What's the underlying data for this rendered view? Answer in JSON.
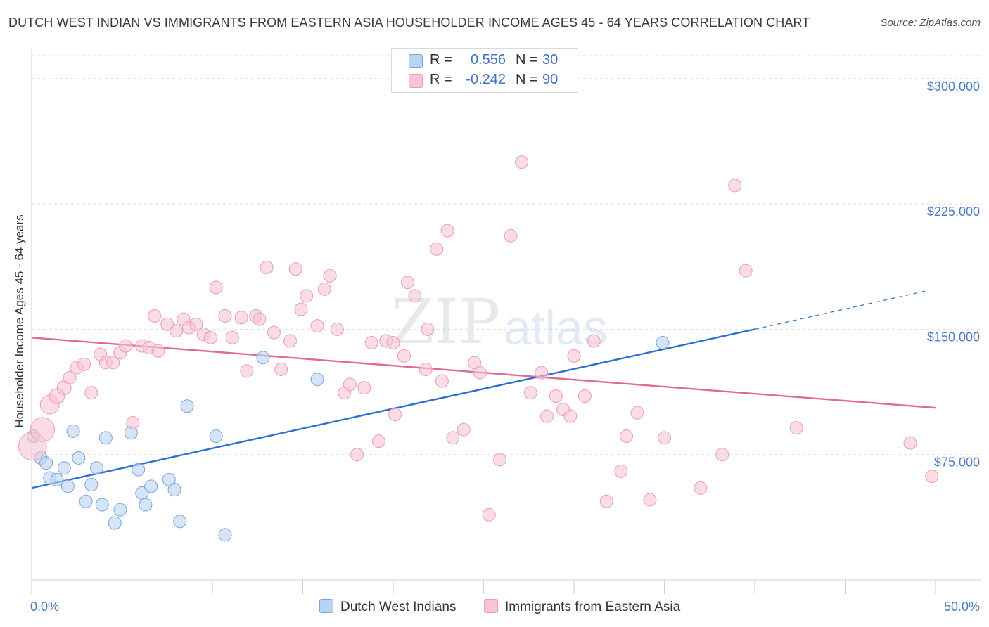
{
  "header": {
    "title": "DUTCH WEST INDIAN VS IMMIGRANTS FROM EASTERN ASIA HOUSEHOLDER INCOME AGES 45 - 64 YEARS CORRELATION CHART",
    "source": "Source: ZipAtlas.com"
  },
  "watermark": {
    "zip": "ZIP",
    "atlas": "atlas"
  },
  "legend": {
    "r_label": "R =",
    "n_label": "N =",
    "blue": {
      "r": "0.556",
      "n": "30"
    },
    "pink": {
      "r": "-0.242",
      "n": "90"
    }
  },
  "colors": {
    "blue_fill": "#b9d3f3",
    "blue_stroke": "#7aa4dc",
    "blue_line": "#2f6fcf",
    "pink_fill": "#f7c5d4",
    "pink_stroke": "#ee9ab4",
    "pink_line": "#e06a92",
    "grid": "#dddddd",
    "tick_label": "#4a7cc9"
  },
  "chart_data": {
    "type": "scatter",
    "title": "DUTCH WEST INDIAN VS IMMIGRANTS FROM EASTERN ASIA HOUSEHOLDER INCOME AGES 45 - 64 YEARS CORRELATION CHART",
    "ylabel": "Householder Income Ages 45 - 64 years",
    "xlim": [
      0,
      50
    ],
    "ylim": [
      0,
      310000
    ],
    "x_ticks": [
      {
        "value": 0,
        "label": "0.0%"
      },
      {
        "value": 50,
        "label": "50.0%"
      }
    ],
    "y_ticks": [
      {
        "value": 75000,
        "label": "$75,000"
      },
      {
        "value": 150000,
        "label": "$150,000"
      },
      {
        "value": 225000,
        "label": "$225,000"
      },
      {
        "value": 300000,
        "label": "$300,000"
      }
    ],
    "grid": true,
    "legend_position": "top-center",
    "series": [
      {
        "name": "Dutch West Indians",
        "color": "blue",
        "trend": {
          "x": [
            0,
            40
          ],
          "y": [
            55000,
            150000
          ],
          "dashed_to": {
            "x": 49.5,
            "y": 173000
          }
        },
        "points": [
          [
            0.1,
            86000,
            1.0
          ],
          [
            0.5,
            73000,
            1.0
          ],
          [
            0.8,
            70000,
            1.0
          ],
          [
            1.0,
            61000,
            1.0
          ],
          [
            1.4,
            60000,
            1.0
          ],
          [
            1.8,
            67000,
            1.0
          ],
          [
            2.0,
            56000,
            1.0
          ],
          [
            2.3,
            89000,
            1.0
          ],
          [
            2.6,
            73000,
            1.0
          ],
          [
            3.0,
            47000,
            1.0
          ],
          [
            3.3,
            57000,
            1.0
          ],
          [
            3.6,
            67000,
            1.0
          ],
          [
            3.9,
            45000,
            1.0
          ],
          [
            4.1,
            85000,
            1.0
          ],
          [
            4.6,
            34000,
            1.0
          ],
          [
            4.9,
            42000,
            1.0
          ],
          [
            5.5,
            88000,
            1.0
          ],
          [
            5.9,
            66000,
            1.0
          ],
          [
            6.1,
            52000,
            1.0
          ],
          [
            6.3,
            45000,
            1.0
          ],
          [
            6.6,
            56000,
            1.0
          ],
          [
            7.6,
            60000,
            1.0
          ],
          [
            7.9,
            54000,
            1.0
          ],
          [
            8.2,
            35000,
            1.0
          ],
          [
            8.6,
            104000,
            1.0
          ],
          [
            10.2,
            86000,
            1.0
          ],
          [
            10.7,
            27000,
            1.0
          ],
          [
            12.8,
            133000,
            1.0
          ],
          [
            15.8,
            120000,
            1.0
          ],
          [
            34.9,
            142000,
            1.0
          ]
        ]
      },
      {
        "name": "Immigrants from Eastern Asia",
        "color": "pink",
        "trend": {
          "x": [
            0,
            50
          ],
          "y": [
            145000,
            103000
          ]
        },
        "points": [
          [
            0.05,
            80000,
            2.2
          ],
          [
            0.6,
            90000,
            1.9
          ],
          [
            1.0,
            105000,
            1.5
          ],
          [
            1.4,
            110000,
            1.2
          ],
          [
            1.8,
            115000,
            1.1
          ],
          [
            2.1,
            121000,
            1.0
          ],
          [
            2.5,
            127000,
            1.0
          ],
          [
            2.9,
            129000,
            1.0
          ],
          [
            3.3,
            112000,
            1.0
          ],
          [
            3.8,
            135000,
            1.0
          ],
          [
            4.1,
            130000,
            1.0
          ],
          [
            4.5,
            130000,
            1.0
          ],
          [
            4.9,
            136000,
            1.0
          ],
          [
            5.2,
            140000,
            1.0
          ],
          [
            5.6,
            94000,
            1.0
          ],
          [
            6.1,
            140000,
            1.0
          ],
          [
            6.5,
            139000,
            1.0
          ],
          [
            7.0,
            137000,
            1.0
          ],
          [
            6.8,
            158000,
            1.0
          ],
          [
            7.5,
            153000,
            1.0
          ],
          [
            8.0,
            149000,
            1.0
          ],
          [
            8.4,
            156000,
            1.0
          ],
          [
            8.7,
            151000,
            1.0
          ],
          [
            9.1,
            153000,
            1.0
          ],
          [
            9.5,
            147000,
            1.0
          ],
          [
            9.9,
            145000,
            1.0
          ],
          [
            10.2,
            175000,
            1.0
          ],
          [
            10.7,
            158000,
            1.0
          ],
          [
            11.1,
            145000,
            1.0
          ],
          [
            11.6,
            157000,
            1.0
          ],
          [
            11.9,
            125000,
            1.0
          ],
          [
            12.4,
            158000,
            1.0
          ],
          [
            12.6,
            156000,
            1.0
          ],
          [
            13.0,
            187000,
            1.0
          ],
          [
            13.4,
            148000,
            1.0
          ],
          [
            13.8,
            126000,
            1.0
          ],
          [
            14.3,
            143000,
            1.0
          ],
          [
            14.6,
            186000,
            1.0
          ],
          [
            14.9,
            162000,
            1.0
          ],
          [
            15.2,
            170000,
            1.0
          ],
          [
            15.8,
            152000,
            1.0
          ],
          [
            16.2,
            174000,
            1.0
          ],
          [
            16.5,
            182000,
            1.0
          ],
          [
            16.9,
            150000,
            1.0
          ],
          [
            17.3,
            112000,
            1.0
          ],
          [
            17.6,
            117000,
            1.0
          ],
          [
            18.0,
            75000,
            1.0
          ],
          [
            18.4,
            115000,
            1.0
          ],
          [
            18.8,
            142000,
            1.0
          ],
          [
            19.2,
            83000,
            1.0
          ],
          [
            19.6,
            143000,
            1.0
          ],
          [
            20.1,
            99000,
            1.0
          ],
          [
            20.0,
            142000,
            1.0
          ],
          [
            20.6,
            134000,
            1.0
          ],
          [
            20.8,
            178000,
            1.0
          ],
          [
            21.2,
            170000,
            1.0
          ],
          [
            21.8,
            126000,
            1.0
          ],
          [
            21.9,
            150000,
            1.0
          ],
          [
            22.4,
            198000,
            1.0
          ],
          [
            22.7,
            119000,
            1.0
          ],
          [
            23.0,
            209000,
            1.0
          ],
          [
            23.3,
            85000,
            1.0
          ],
          [
            23.9,
            90000,
            1.0
          ],
          [
            24.5,
            130000,
            1.0
          ],
          [
            24.8,
            124000,
            1.0
          ],
          [
            25.3,
            39000,
            1.0
          ],
          [
            25.9,
            72000,
            1.0
          ],
          [
            26.5,
            206000,
            1.0
          ],
          [
            27.1,
            250000,
            1.0
          ],
          [
            27.6,
            112000,
            1.0
          ],
          [
            28.2,
            124000,
            1.0
          ],
          [
            28.5,
            98000,
            1.0
          ],
          [
            29.0,
            110000,
            1.0
          ],
          [
            29.4,
            102000,
            1.0
          ],
          [
            29.8,
            98000,
            1.0
          ],
          [
            30.0,
            134000,
            1.0
          ],
          [
            30.6,
            110000,
            1.0
          ],
          [
            31.1,
            143000,
            1.0
          ],
          [
            31.8,
            47000,
            1.0
          ],
          [
            32.6,
            65000,
            1.0
          ],
          [
            32.9,
            86000,
            1.0
          ],
          [
            33.5,
            100000,
            1.0
          ],
          [
            34.2,
            48000,
            1.0
          ],
          [
            35.0,
            85000,
            1.0
          ],
          [
            37.0,
            55000,
            1.0
          ],
          [
            38.2,
            75000,
            1.0
          ],
          [
            38.9,
            236000,
            1.0
          ],
          [
            39.5,
            185000,
            1.0
          ],
          [
            42.3,
            91000,
            1.0
          ],
          [
            48.6,
            82000,
            1.0
          ],
          [
            49.8,
            62000,
            1.0
          ]
        ]
      }
    ]
  }
}
